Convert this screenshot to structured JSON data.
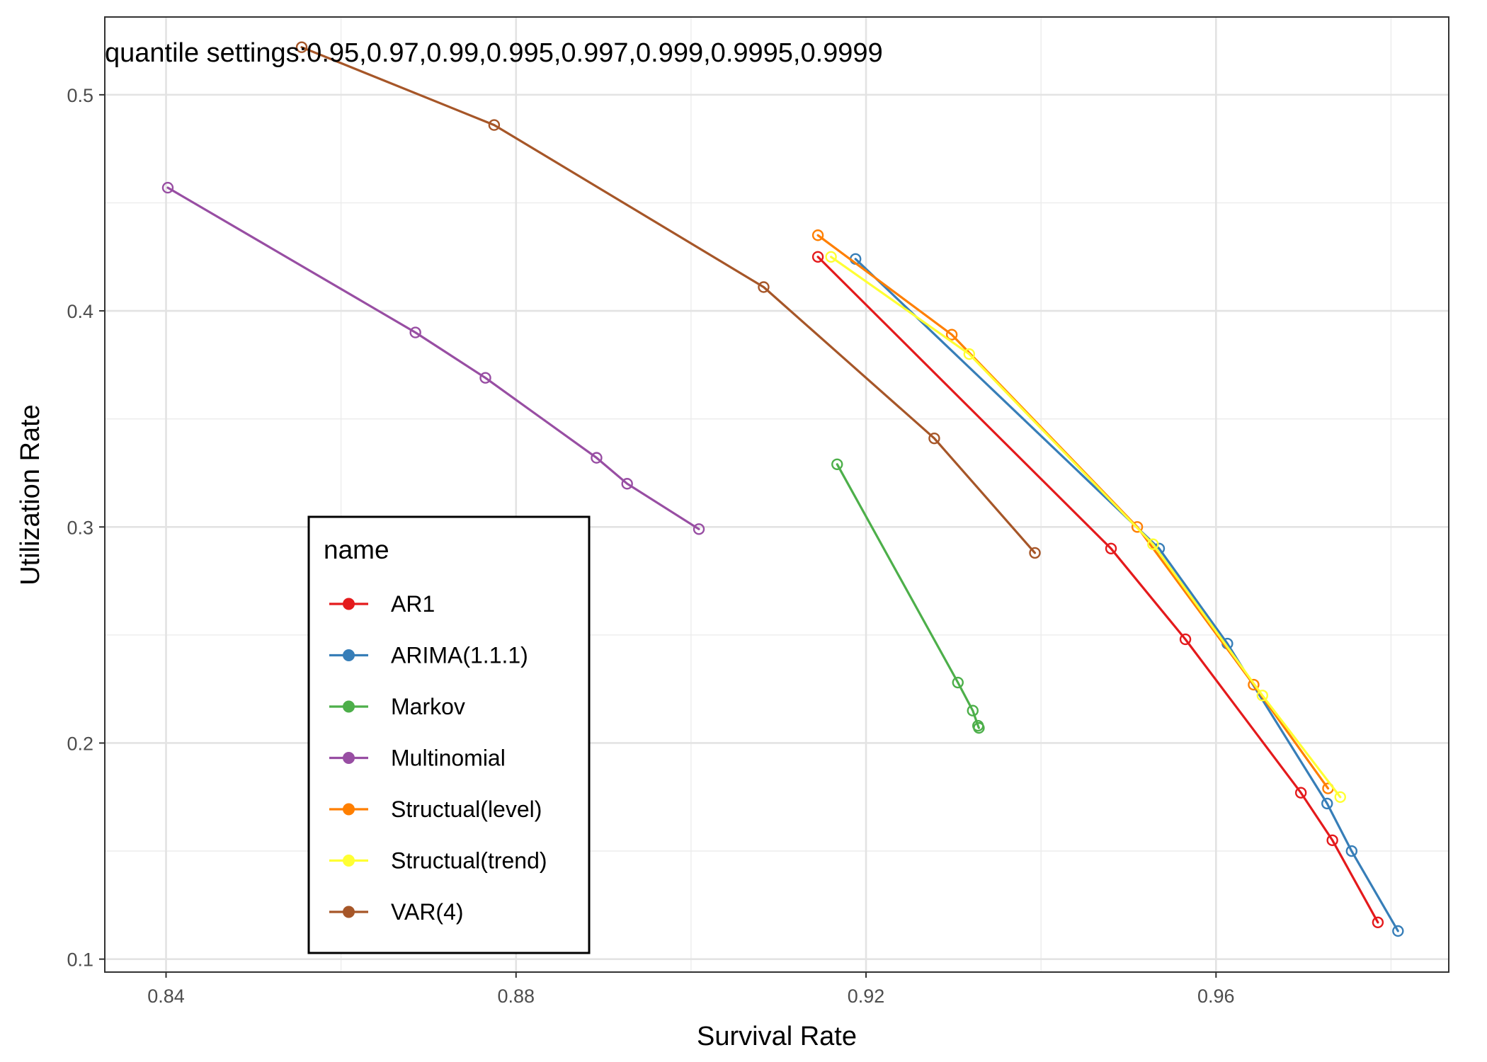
{
  "chart_data": {
    "type": "line",
    "xlabel": "Survival Rate",
    "ylabel": "Utilization Rate",
    "xlim": [
      0.833,
      0.9866
    ],
    "ylim": [
      0.094,
      0.536
    ],
    "x_ticks": [
      0.84,
      0.88,
      0.92,
      0.96
    ],
    "x_tick_labels": [
      "0.84",
      "0.88",
      "0.92",
      "0.96"
    ],
    "y_ticks": [
      0.1,
      0.2,
      0.3,
      0.4,
      0.5
    ],
    "y_tick_labels": [
      "0.1",
      "0.2",
      "0.3",
      "0.4",
      "0.5"
    ],
    "grid": true,
    "annotation": "quantile settings:0.95,0.97,0.99,0.995,0.997,0.999,0.9995,0.9999",
    "legend": {
      "title": "name",
      "position": "bottom-left-inside"
    },
    "series": [
      {
        "name": "AR1",
        "color": "#E41A1C",
        "x": [
          0.9145,
          0.948,
          0.9565,
          0.9697,
          0.9733,
          0.9785
        ],
        "y": [
          0.425,
          0.29,
          0.248,
          0.177,
          0.155,
          0.117
        ]
      },
      {
        "name": "ARIMA(1.1.1)",
        "color": "#377EB8",
        "x": [
          0.9188,
          0.9535,
          0.9613,
          0.9727,
          0.9755,
          0.9808
        ],
        "y": [
          0.424,
          0.29,
          0.246,
          0.172,
          0.15,
          0.113
        ]
      },
      {
        "name": "Markov",
        "color": "#4DAF4A",
        "x": [
          0.9167,
          0.9305,
          0.9322,
          0.9328,
          0.9329
        ],
        "y": [
          0.329,
          0.228,
          0.215,
          0.208,
          0.207
        ]
      },
      {
        "name": "Multinomial",
        "color": "#984EA3",
        "x": [
          0.8402,
          0.8685,
          0.8765,
          0.8892,
          0.8927,
          0.9009
        ],
        "y": [
          0.457,
          0.39,
          0.369,
          0.332,
          0.32,
          0.299
        ]
      },
      {
        "name": "Structual(level)",
        "color": "#FF7F00",
        "x": [
          0.9145,
          0.9298,
          0.951,
          0.9643,
          0.9728
        ],
        "y": [
          0.435,
          0.389,
          0.3,
          0.227,
          0.179
        ]
      },
      {
        "name": "Structual(trend)",
        "color": "#FFFF33",
        "x": [
          0.916,
          0.9318,
          0.9528,
          0.9653,
          0.9742
        ],
        "y": [
          0.425,
          0.38,
          0.292,
          0.222,
          0.175
        ]
      },
      {
        "name": "VAR(4)",
        "color": "#A65628",
        "x": [
          0.8555,
          0.8775,
          0.9083,
          0.9278,
          0.9393
        ],
        "y": [
          0.522,
          0.486,
          0.411,
          0.341,
          0.288
        ]
      }
    ]
  }
}
